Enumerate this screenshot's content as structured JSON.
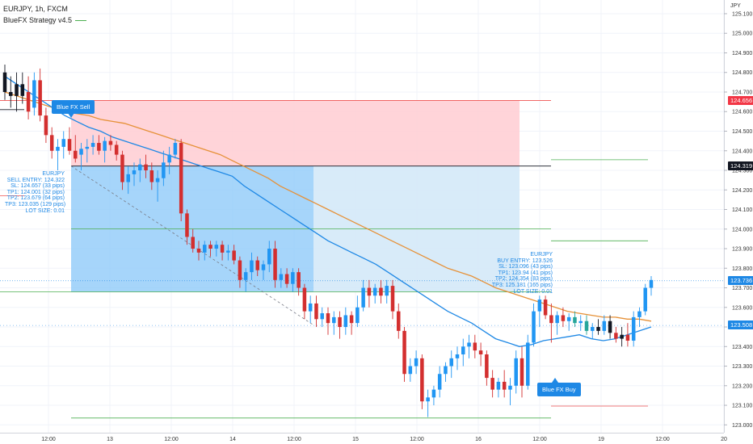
{
  "header": {
    "symbol_line": "EURJPY, 1h, FXCM",
    "indicator_name": "BlueFX Strategy v4.5"
  },
  "axis": {
    "currency": "JPY",
    "y_ticks": [
      "125.100",
      "125.000",
      "124.900",
      "124.800",
      "124.700",
      "124.600",
      "124.500",
      "124.400",
      "124.300",
      "124.200",
      "124.100",
      "124.000",
      "123.900",
      "123.800",
      "123.700",
      "123.600",
      "123.500",
      "123.400",
      "123.300",
      "123.200",
      "123.100",
      "123.000"
    ],
    "x_ticks": [
      "12:00",
      "13",
      "12:00",
      "14",
      "12:00",
      "15",
      "12:00",
      "16",
      "12:00",
      "19",
      "12:00",
      "20"
    ],
    "price_tags": [
      {
        "label": "124.656",
        "color": "#f23645"
      },
      {
        "label": "124.319",
        "color": "#131722"
      },
      {
        "label": "123.736",
        "color": "#1e88e5"
      },
      {
        "label": "123.508",
        "color": "#1e88e5"
      }
    ]
  },
  "sell_panel": {
    "lines": [
      "EURJPY",
      "SELL ENTRY: 124.322",
      "SL: 124.657 (33 pips)",
      "TP1: 124.001 (32 pips)",
      "TP2: 123.679 (64 pips)",
      "TP3: 123.035 (129 pips)",
      "LOT SIZE: 0.01"
    ]
  },
  "buy_panel": {
    "lines": [
      "EURJPY",
      "BUY ENTRY: 123.526",
      "SL: 123.096 (43 pips)",
      "TP1: 123.94 (41 pips)",
      "TP2: 124.354 (83 pips)",
      "TP3: 125.181 (165 pips)",
      "LOT SIZE: 0.01"
    ]
  },
  "signals": {
    "sell_label": "Blue FX Sell",
    "buy_label": "Blue FX Buy"
  },
  "colors": {
    "up_candle": "#2196f3",
    "down_candle": "#d32f2f",
    "neutral_candle": "#131722",
    "green_candle": "#26a69a",
    "fast_ma": "#1e88e5",
    "slow_ma": "#e69138",
    "sl_zone": "#ffcdd2",
    "tp_zone_dark": "#90caf9",
    "tp_zone_light": "#d4e9f8",
    "tp_line": "#4caf50"
  },
  "chart_data": {
    "type": "candlestick",
    "symbol": "EURJPY",
    "timeframe": "1h",
    "source": "FXCM",
    "ylim": [
      122.96,
      125.17
    ],
    "x_labels": [
      "12:00",
      "13",
      "12:00",
      "14",
      "12:00",
      "15",
      "12:00",
      "16",
      "12:00",
      "19",
      "12:00",
      "20"
    ],
    "candles": [
      [
        124.8,
        124.84,
        124.66,
        124.7
      ],
      [
        124.7,
        124.78,
        124.62,
        124.68
      ],
      [
        124.68,
        124.8,
        124.6,
        124.74
      ],
      [
        124.74,
        124.8,
        124.64,
        124.68
      ],
      [
        124.7,
        124.78,
        124.56,
        124.6
      ],
      [
        124.62,
        124.8,
        124.58,
        124.76
      ],
      [
        124.76,
        124.82,
        124.55,
        124.58
      ],
      [
        124.58,
        124.62,
        124.44,
        124.48
      ],
      [
        124.48,
        124.52,
        124.36,
        124.4
      ],
      [
        124.4,
        124.46,
        124.3,
        124.42
      ],
      [
        124.42,
        124.5,
        124.36,
        124.46
      ],
      [
        124.46,
        124.52,
        124.38,
        124.4
      ],
      [
        124.4,
        124.48,
        124.34,
        124.36
      ],
      [
        124.38,
        124.44,
        124.3,
        124.41
      ],
      [
        124.41,
        124.46,
        124.34,
        124.42
      ],
      [
        124.42,
        124.48,
        124.38,
        124.44
      ],
      [
        124.44,
        124.48,
        124.38,
        124.4
      ],
      [
        124.4,
        124.47,
        124.34,
        124.45
      ],
      [
        124.45,
        124.48,
        124.4,
        124.43
      ],
      [
        124.43,
        124.45,
        124.35,
        124.38
      ],
      [
        124.38,
        124.4,
        124.2,
        124.24
      ],
      [
        124.24,
        124.32,
        124.18,
        124.28
      ],
      [
        124.28,
        124.34,
        124.22,
        124.3
      ],
      [
        124.3,
        124.36,
        124.24,
        124.33
      ],
      [
        124.33,
        124.38,
        124.26,
        124.3
      ],
      [
        124.3,
        124.34,
        124.2,
        124.24
      ],
      [
        124.24,
        124.3,
        124.14,
        124.26
      ],
      [
        124.26,
        124.4,
        124.22,
        124.34
      ],
      [
        124.34,
        124.42,
        124.28,
        124.38
      ],
      [
        124.38,
        124.46,
        124.36,
        124.44
      ],
      [
        124.44,
        124.46,
        124.04,
        124.08
      ],
      [
        124.08,
        124.1,
        123.92,
        123.96
      ],
      [
        123.96,
        124.0,
        123.88,
        123.9
      ],
      [
        123.9,
        123.94,
        123.84,
        123.88
      ],
      [
        123.88,
        123.94,
        123.84,
        123.92
      ],
      [
        123.92,
        123.94,
        123.86,
        123.9
      ],
      [
        123.9,
        123.94,
        123.86,
        123.92
      ],
      [
        123.92,
        123.94,
        123.84,
        123.88
      ],
      [
        123.88,
        123.92,
        123.84,
        123.89
      ],
      [
        123.89,
        123.92,
        123.82,
        123.84
      ],
      [
        123.84,
        123.86,
        123.7,
        123.74
      ],
      [
        123.74,
        123.8,
        123.68,
        123.78
      ],
      [
        123.78,
        123.88,
        123.74,
        123.84
      ],
      [
        123.84,
        123.86,
        123.76,
        123.79
      ],
      [
        123.79,
        123.84,
        123.74,
        123.82
      ],
      [
        123.82,
        123.94,
        123.78,
        123.9
      ],
      [
        123.9,
        123.94,
        123.7,
        123.74
      ],
      [
        123.74,
        123.8,
        123.7,
        123.77
      ],
      [
        123.77,
        123.8,
        123.7,
        123.72
      ],
      [
        123.72,
        123.8,
        123.68,
        123.78
      ],
      [
        123.78,
        123.8,
        123.66,
        123.7
      ],
      [
        123.7,
        123.72,
        123.54,
        123.58
      ],
      [
        123.58,
        123.66,
        123.52,
        123.62
      ],
      [
        123.62,
        123.66,
        123.5,
        123.54
      ],
      [
        123.54,
        123.6,
        123.5,
        123.57
      ],
      [
        123.57,
        123.6,
        123.46,
        123.52
      ],
      [
        123.52,
        123.58,
        123.46,
        123.55
      ],
      [
        123.55,
        123.58,
        123.44,
        123.5
      ],
      [
        123.5,
        123.6,
        123.46,
        123.56
      ],
      [
        123.56,
        123.58,
        123.46,
        123.52
      ],
      [
        123.52,
        123.66,
        123.5,
        123.6
      ],
      [
        123.6,
        123.74,
        123.58,
        123.7
      ],
      [
        123.7,
        123.74,
        123.6,
        123.66
      ],
      [
        123.66,
        123.72,
        123.62,
        123.7
      ],
      [
        123.7,
        123.74,
        123.62,
        123.66
      ],
      [
        123.66,
        123.74,
        123.62,
        123.71
      ],
      [
        123.71,
        123.74,
        123.54,
        123.58
      ],
      [
        123.58,
        123.62,
        123.44,
        123.48
      ],
      [
        123.48,
        123.5,
        123.22,
        123.26
      ],
      [
        123.26,
        123.34,
        123.22,
        123.3
      ],
      [
        123.3,
        123.38,
        123.26,
        123.34
      ],
      [
        123.34,
        123.36,
        123.08,
        123.12
      ],
      [
        123.12,
        123.18,
        123.04,
        123.14
      ],
      [
        123.14,
        123.2,
        123.1,
        123.18
      ],
      [
        123.18,
        123.3,
        123.14,
        123.26
      ],
      [
        123.26,
        123.32,
        123.22,
        123.3
      ],
      [
        123.3,
        123.38,
        123.24,
        123.34
      ],
      [
        123.34,
        123.4,
        123.28,
        123.36
      ],
      [
        123.36,
        123.44,
        123.3,
        123.4
      ],
      [
        123.4,
        123.46,
        123.34,
        123.42
      ],
      [
        123.42,
        123.46,
        123.34,
        123.38
      ],
      [
        123.38,
        123.42,
        123.3,
        123.36
      ],
      [
        123.36,
        123.38,
        123.2,
        123.24
      ],
      [
        123.24,
        123.28,
        123.14,
        123.18
      ],
      [
        123.18,
        123.24,
        123.14,
        123.22
      ],
      [
        123.22,
        123.28,
        123.14,
        123.18
      ],
      [
        123.18,
        123.24,
        123.1,
        123.2
      ],
      [
        123.2,
        123.38,
        123.16,
        123.34
      ],
      [
        123.34,
        123.4,
        123.14,
        123.2
      ],
      [
        123.2,
        123.46,
        123.18,
        123.42
      ],
      [
        123.42,
        123.62,
        123.4,
        123.58
      ],
      [
        123.58,
        123.66,
        123.5,
        123.64
      ],
      [
        123.64,
        123.66,
        123.54,
        123.56
      ],
      [
        123.56,
        123.62,
        123.42,
        123.52
      ],
      [
        123.52,
        123.58,
        123.46,
        123.56
      ],
      [
        123.56,
        123.6,
        123.5,
        123.53
      ],
      [
        123.53,
        123.57,
        123.48,
        123.55
      ],
      [
        123.55,
        123.58,
        123.5,
        123.52
      ],
      [
        123.52,
        123.56,
        123.48,
        123.53
      ],
      [
        123.53,
        123.56,
        123.46,
        123.48
      ],
      [
        123.48,
        123.52,
        123.44,
        123.5
      ],
      [
        123.5,
        123.54,
        123.46,
        123.48
      ],
      [
        123.48,
        123.56,
        123.46,
        123.53
      ],
      [
        123.53,
        123.56,
        123.44,
        123.47
      ],
      [
        123.47,
        123.5,
        123.42,
        123.44
      ],
      [
        123.44,
        123.5,
        123.4,
        123.46
      ],
      [
        123.46,
        123.52,
        123.4,
        123.43
      ],
      [
        123.43,
        123.58,
        123.4,
        123.55
      ],
      [
        123.55,
        123.6,
        123.5,
        123.58
      ],
      [
        123.58,
        123.72,
        123.56,
        123.7
      ],
      [
        123.7,
        123.76,
        123.66,
        123.74
      ]
    ],
    "fast_ma": [
      124.78,
      124.74,
      124.7,
      124.66,
      124.62,
      124.58,
      124.55,
      124.52,
      124.5,
      124.47,
      124.45,
      124.43,
      124.41,
      124.39,
      124.37,
      124.35,
      124.33,
      124.31,
      124.29,
      124.27,
      124.22,
      124.18,
      124.14,
      124.1,
      124.06,
      124.02,
      123.98,
      123.94,
      123.91,
      123.88,
      123.85,
      123.82,
      123.78,
      123.74,
      123.7,
      123.66,
      123.62,
      123.58,
      123.55,
      123.52,
      123.48,
      123.44,
      123.42,
      123.4,
      123.41,
      123.43,
      123.44,
      123.45,
      123.46,
      123.44,
      123.43,
      123.44,
      123.46,
      123.48,
      123.5
    ],
    "slow_ma": [
      124.7,
      124.68,
      124.66,
      124.64,
      124.62,
      124.6,
      124.59,
      124.58,
      124.56,
      124.55,
      124.54,
      124.52,
      124.5,
      124.48,
      124.46,
      124.44,
      124.42,
      124.4,
      124.38,
      124.35,
      124.32,
      124.29,
      124.26,
      124.22,
      124.19,
      124.16,
      124.13,
      124.1,
      124.07,
      124.04,
      124.01,
      123.98,
      123.95,
      123.92,
      123.89,
      123.86,
      123.83,
      123.8,
      123.78,
      123.76,
      123.73,
      123.7,
      123.68,
      123.66,
      123.64,
      123.62,
      123.6,
      123.58,
      123.57,
      123.56,
      123.55,
      123.55,
      123.54,
      123.54,
      123.53
    ],
    "sell_trade": {
      "entry": 124.322,
      "sl": 124.657,
      "tp1": 124.001,
      "tp2": 123.679,
      "tp3": 123.035,
      "lot_size": 0.01
    },
    "buy_trade": {
      "entry": 123.526,
      "sl": 123.096,
      "tp1": 123.94,
      "tp2": 124.354,
      "tp3": 125.181,
      "lot_size": 0.01
    },
    "last_price": 123.736
  }
}
